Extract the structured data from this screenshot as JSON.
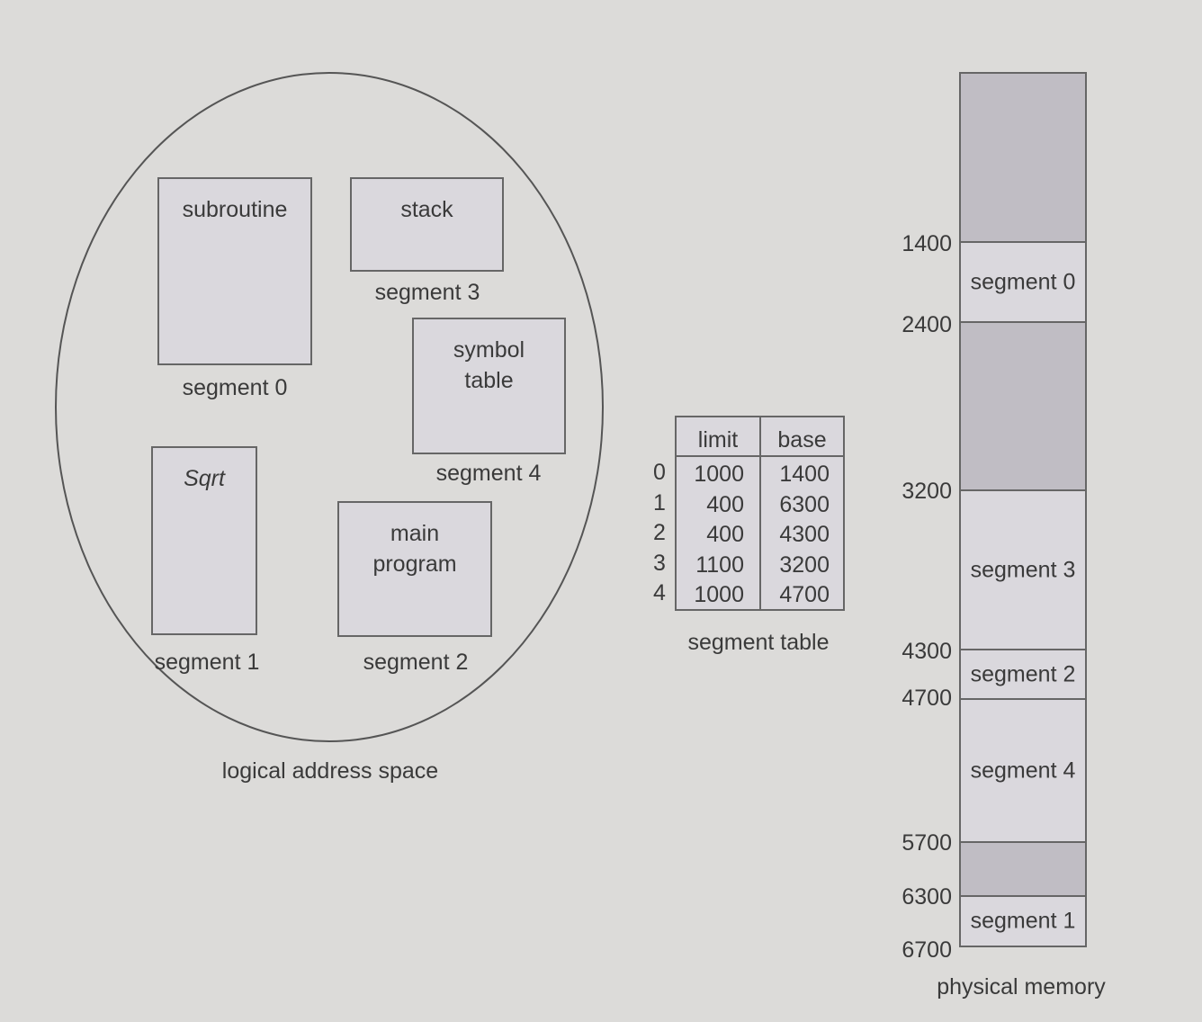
{
  "logical": {
    "caption": "logical address space",
    "segments": [
      {
        "content": "subroutine",
        "label": "segment 0"
      },
      {
        "content": "stack",
        "label": "segment 3"
      },
      {
        "content_lines": [
          "symbol",
          "table"
        ],
        "label": "segment 4"
      },
      {
        "content": "Sqrt",
        "label": "segment 1"
      },
      {
        "content_lines": [
          "main",
          "program"
        ],
        "label": "segment 2"
      }
    ]
  },
  "segment_table": {
    "caption": "segment table",
    "headers": [
      "limit",
      "base"
    ],
    "rows": [
      {
        "index": "0",
        "limit": "1000",
        "base": "1400"
      },
      {
        "index": "1",
        "limit": "400",
        "base": "6300"
      },
      {
        "index": "2",
        "limit": "400",
        "base": "4300"
      },
      {
        "index": "3",
        "limit": "1100",
        "base": "3200"
      },
      {
        "index": "4",
        "limit": "1000",
        "base": "4700"
      }
    ]
  },
  "physical": {
    "caption": "physical memory",
    "addresses": [
      "1400",
      "2400",
      "3200",
      "4300",
      "4700",
      "5700",
      "6300",
      "6700"
    ],
    "blocks": [
      {
        "label": "",
        "kind": "free"
      },
      {
        "label": "segment 0",
        "kind": "used"
      },
      {
        "label": "",
        "kind": "free"
      },
      {
        "label": "segment 3",
        "kind": "used"
      },
      {
        "label": "segment 2",
        "kind": "used"
      },
      {
        "label": "segment 4",
        "kind": "used"
      },
      {
        "label": "",
        "kind": "free"
      },
      {
        "label": "segment 1",
        "kind": "used"
      }
    ]
  },
  "colors": {
    "background": "#dcdbd9",
    "used": "#dad8dd",
    "free": "#c0bdc4",
    "stroke": "#666666"
  }
}
